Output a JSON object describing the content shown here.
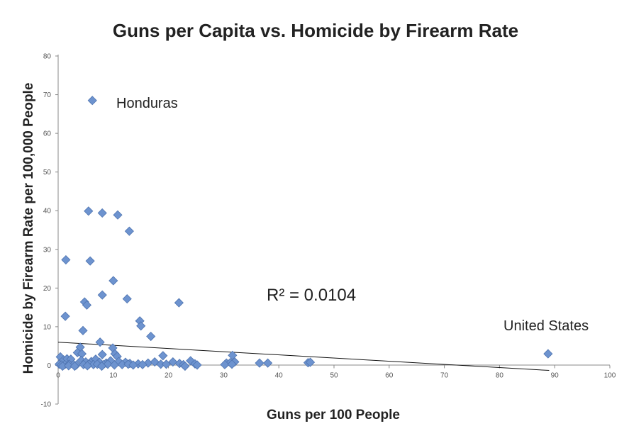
{
  "chart_data": {
    "type": "scatter",
    "title": "Guns per Capita vs. Homicide by Firearm Rate",
    "xlabel": "Guns per 100 People",
    "ylabel": "Homicide by Firearm Rate per 100,000 People",
    "xlim": [
      0,
      100
    ],
    "ylim": [
      -10,
      80
    ],
    "x_ticks": [
      "0",
      "10",
      "20",
      "30",
      "40",
      "50",
      "60",
      "70",
      "80",
      "90",
      "100"
    ],
    "y_ticks": [
      "-10",
      "0",
      "10",
      "20",
      "30",
      "40",
      "50",
      "60",
      "70",
      "80"
    ],
    "grid": false,
    "marker": "diamond",
    "marker_color": "#6d93cf",
    "trendline_color": "#111111",
    "trendline": {
      "x": [
        0,
        89
      ],
      "y": [
        6.0,
        -1.3
      ]
    },
    "r_squared_label": "R² = 0.0104",
    "annotations": [
      {
        "text": "Honduras",
        "x": 6.2,
        "y": 68.5
      },
      {
        "text": "United States",
        "x": 88.8,
        "y": 3.0
      }
    ],
    "series": [
      {
        "points": [
          [
            6.2,
            68.5
          ],
          [
            5.5,
            39.9
          ],
          [
            8.0,
            39.4
          ],
          [
            10.8,
            38.9
          ],
          [
            12.9,
            34.7
          ],
          [
            1.4,
            27.3
          ],
          [
            5.8,
            27.0
          ],
          [
            10.0,
            21.9
          ],
          [
            8.0,
            18.2
          ],
          [
            12.5,
            17.2
          ],
          [
            21.9,
            16.2
          ],
          [
            4.8,
            16.4
          ],
          [
            5.2,
            15.6
          ],
          [
            1.3,
            12.7
          ],
          [
            14.8,
            11.5
          ],
          [
            15.0,
            10.2
          ],
          [
            4.5,
            9.0
          ],
          [
            16.8,
            7.5
          ],
          [
            7.6,
            6.0
          ],
          [
            9.9,
            4.5
          ],
          [
            4.0,
            4.7
          ],
          [
            3.5,
            3.3
          ],
          [
            4.3,
            3.0
          ],
          [
            10.3,
            3.0
          ],
          [
            10.7,
            2.3
          ],
          [
            8.0,
            2.8
          ],
          [
            19.0,
            2.5
          ],
          [
            31.6,
            2.6
          ],
          [
            0.4,
            2.2
          ],
          [
            1.0,
            1.4
          ],
          [
            1.6,
            1.7
          ],
          [
            2.3,
            1.6
          ],
          [
            4.2,
            1.3
          ],
          [
            5.0,
            0.9
          ],
          [
            6.0,
            1.0
          ],
          [
            6.8,
            1.6
          ],
          [
            7.5,
            0.8
          ],
          [
            8.7,
            0.6
          ],
          [
            9.5,
            1.2
          ],
          [
            11.0,
            1.0
          ],
          [
            12.2,
            0.8
          ],
          [
            13.0,
            0.5
          ],
          [
            14.5,
            0.4
          ],
          [
            16.3,
            0.6
          ],
          [
            17.5,
            0.9
          ],
          [
            20.8,
            0.9
          ],
          [
            22.0,
            0.5
          ],
          [
            24.0,
            1.2
          ],
          [
            24.8,
            0.4
          ],
          [
            30.5,
            0.6
          ],
          [
            31.2,
            0.7
          ],
          [
            32.0,
            0.9
          ],
          [
            36.5,
            0.6
          ],
          [
            38.0,
            0.6
          ],
          [
            45.3,
            0.7
          ],
          [
            45.7,
            0.8
          ],
          [
            88.8,
            3.0
          ],
          [
            0.2,
            0.3
          ],
          [
            0.6,
            0.1
          ],
          [
            1.2,
            0.2
          ],
          [
            2.0,
            0.3
          ],
          [
            2.8,
            0.2
          ],
          [
            3.3,
            0.1
          ],
          [
            4.6,
            0.2
          ],
          [
            5.6,
            0.3
          ],
          [
            6.4,
            0.2
          ],
          [
            7.1,
            0.3
          ],
          [
            8.2,
            0.2
          ],
          [
            9.0,
            0.3
          ],
          [
            10.2,
            0.1
          ],
          [
            11.6,
            0.2
          ],
          [
            12.7,
            0.3
          ],
          [
            13.6,
            0.1
          ],
          [
            15.3,
            0.2
          ],
          [
            18.6,
            0.3
          ],
          [
            19.6,
            0.3
          ],
          [
            22.7,
            0.2
          ],
          [
            25.2,
            0.1
          ],
          [
            30.2,
            0.2
          ],
          [
            31.5,
            0.3
          ],
          [
            0.8,
            -0.2
          ],
          [
            1.9,
            -0.1
          ],
          [
            3.0,
            -0.2
          ],
          [
            5.3,
            -0.1
          ],
          [
            7.9,
            -0.2
          ],
          [
            23.0,
            -0.2
          ]
        ]
      }
    ]
  }
}
